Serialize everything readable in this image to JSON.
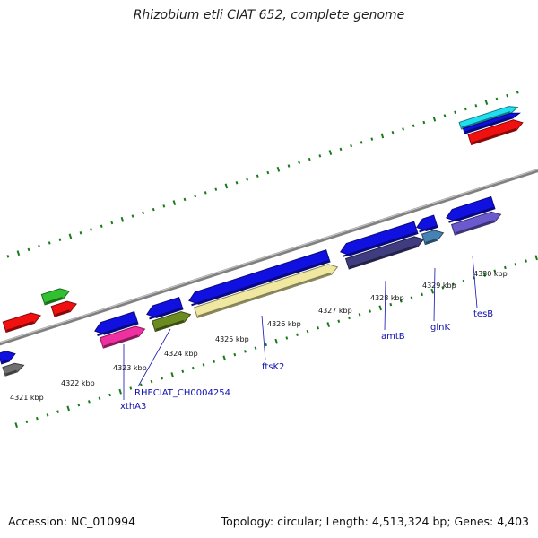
{
  "title": "Rhizobium etli CIAT 652, complete genome",
  "accession": "Accession: NC_010994",
  "summary": "Topology: circular; Length: 4,513,324 bp; Genes: 4,403",
  "backbone_color": "#808080",
  "ticks": [
    {
      "kbp": 4321,
      "label": "4321 kbp"
    },
    {
      "kbp": 4322,
      "label": "4322 kbp"
    },
    {
      "kbp": 4323,
      "label": "4323 kbp"
    },
    {
      "kbp": 4324,
      "label": "4324 kbp"
    },
    {
      "kbp": 4325,
      "label": "4325 kbp"
    },
    {
      "kbp": 4326,
      "label": "4326 kbp"
    },
    {
      "kbp": 4327,
      "label": "4327 kbp"
    },
    {
      "kbp": 4328,
      "label": "4328 kbp"
    },
    {
      "kbp": 4329,
      "label": "4329 kbp"
    },
    {
      "kbp": 4330,
      "label": "4330 kbp"
    }
  ],
  "gene_labels": [
    {
      "name": "xthA3"
    },
    {
      "name": "RHECIAT_CH0004254"
    },
    {
      "name": "ftsK2"
    },
    {
      "name": "amtB"
    },
    {
      "name": "glnK"
    },
    {
      "name": "tesB"
    }
  ],
  "colors": {
    "cds": "#1010e0",
    "red": "#f01010",
    "green": "#30c030",
    "pink": "#f030a0",
    "olive": "#6b8a20",
    "yellow": "#f0e8a0",
    "darkblue": "#403c80",
    "steelblue": "#4682b4",
    "slate": "#6a5acd",
    "cyan": "#20e0f0",
    "gray": "#707070",
    "tick": "#1a7a1a"
  }
}
